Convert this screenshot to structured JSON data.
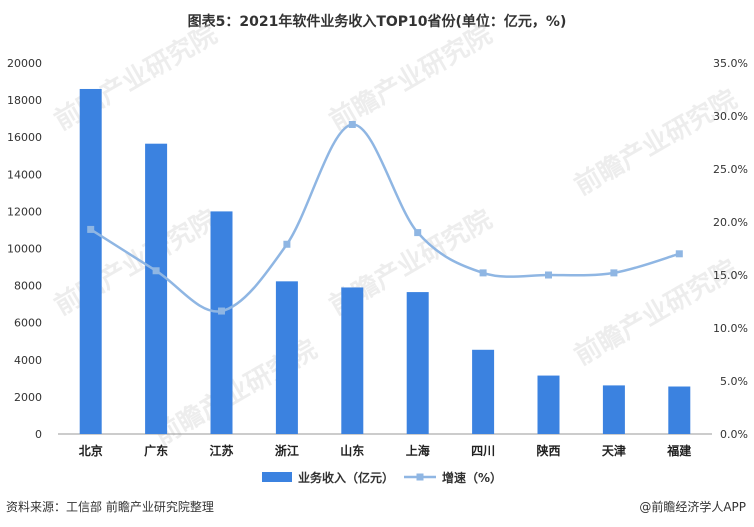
{
  "chart_data": {
    "type": "bar",
    "title": "图表5：2021年软件业务收入TOP10省份(单位：亿元，%)",
    "categories": [
      "北京",
      "广东",
      "江苏",
      "浙江",
      "山东",
      "上海",
      "四川",
      "陕西",
      "天津",
      "福建"
    ],
    "series": [
      {
        "name": "业务收入（亿元）",
        "type": "bar",
        "axis": "left",
        "values": [
          18600,
          15650,
          12000,
          8230,
          7900,
          7650,
          4540,
          3150,
          2620,
          2560
        ]
      },
      {
        "name": "增速（%）",
        "type": "line",
        "axis": "right",
        "values": [
          19.3,
          15.4,
          11.6,
          17.9,
          29.2,
          19.0,
          15.2,
          15.0,
          15.2,
          17.0
        ]
      }
    ],
    "y_left": {
      "min": 0,
      "max": 20000,
      "ticks": [
        "0",
        "2000",
        "4000",
        "6000",
        "8000",
        "10000",
        "12000",
        "14000",
        "16000",
        "18000",
        "20000"
      ]
    },
    "y_right": {
      "min": 0,
      "max": 35,
      "ticks": [
        "0.0%",
        "5.0%",
        "10.0%",
        "15.0%",
        "20.0%",
        "25.0%",
        "30.0%",
        "35.0%"
      ]
    },
    "legend_position": "bottom",
    "grid": false,
    "colors": {
      "bar": "#3b82e0",
      "line": "#8fb6e3",
      "line_marker": "#8fb6e3"
    }
  },
  "footer": {
    "source": "资料来源：工信部 前瞻产业研究院整理",
    "brand": "@前瞻经济学人APP"
  },
  "watermark": "前瞻产业研究院"
}
